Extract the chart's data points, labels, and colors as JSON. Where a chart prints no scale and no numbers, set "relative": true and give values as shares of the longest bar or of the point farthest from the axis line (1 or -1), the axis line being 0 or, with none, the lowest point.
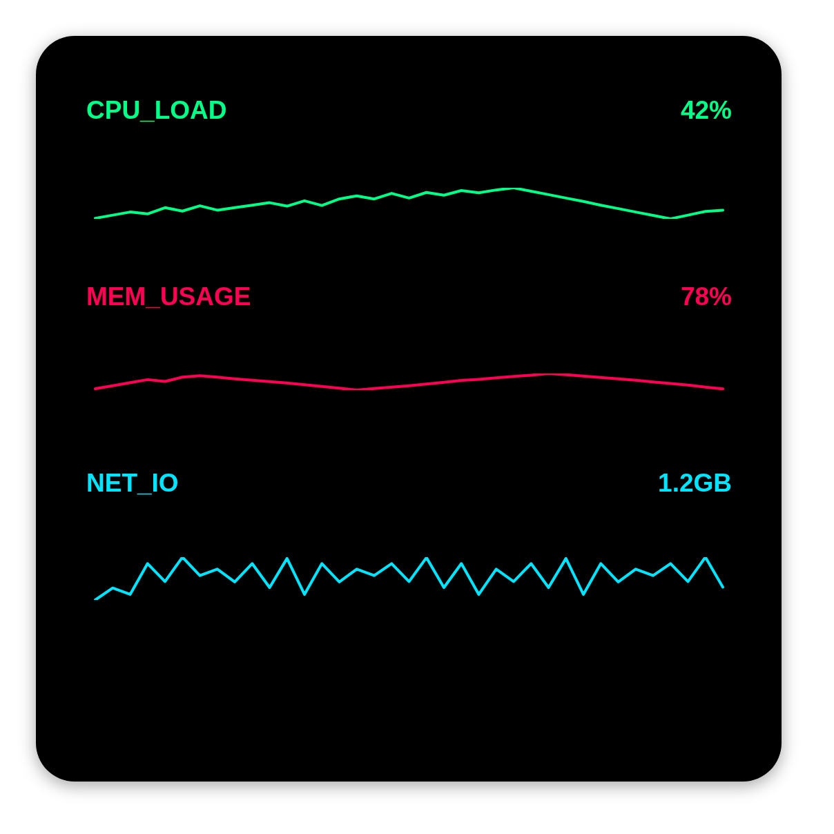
{
  "chart_data": [
    {
      "type": "line",
      "title": "CPU_LOAD",
      "annotations": [
        "42%"
      ],
      "relative": true,
      "categories": [
        null,
        null,
        null,
        null,
        null,
        null,
        null,
        null,
        null,
        null,
        null,
        null,
        null,
        null,
        null,
        null,
        null,
        null,
        null,
        null,
        null,
        null,
        null,
        null,
        null,
        null,
        null,
        null,
        null,
        null,
        null,
        null,
        null,
        null,
        null,
        null,
        null
      ],
      "series": [
        {
          "color": "#00ff88",
          "values": [
            0.02,
            0.12,
            0.22,
            0.16,
            0.36,
            0.25,
            0.42,
            0.28,
            0.36,
            0.44,
            0.52,
            0.41,
            0.58,
            0.43,
            0.64,
            0.74,
            0.64,
            0.82,
            0.67,
            0.85,
            0.76,
            0.91,
            0.84,
            0.93,
            1,
            0.89,
            0.78,
            0.67,
            0.56,
            0.44,
            0.33,
            0.22,
            0.11,
            0,
            0.12,
            0.24,
            0.28
          ]
        }
      ]
    },
    {
      "type": "line",
      "title": "MEM_USAGE",
      "annotations": [
        "78%"
      ],
      "relative": true,
      "categories": [
        null,
        null,
        null,
        null,
        null,
        null,
        null,
        null,
        null,
        null,
        null,
        null,
        null,
        null,
        null,
        null,
        null,
        null,
        null,
        null,
        null,
        null,
        null,
        null,
        null,
        null,
        null,
        null,
        null,
        null,
        null,
        null,
        null,
        null,
        null,
        null,
        null
      ],
      "series": [
        {
          "color": "#ff0055",
          "values": [
            0.08,
            0.26,
            0.45,
            0.63,
            0.52,
            0.78,
            0.86,
            0.78,
            0.68,
            0.59,
            0.51,
            0.43,
            0.32,
            0.22,
            0.11,
            0,
            0.09,
            0.18,
            0.26,
            0.36,
            0.47,
            0.58,
            0.65,
            0.74,
            0.82,
            0.9,
            1,
            0.93,
            0.84,
            0.76,
            0.68,
            0.59,
            0.49,
            0.4,
            0.3,
            0.18,
            0.07
          ]
        }
      ]
    },
    {
      "type": "line",
      "title": "NET_IO",
      "annotations": [
        "1.2GB"
      ],
      "relative": true,
      "categories": [
        null,
        null,
        null,
        null,
        null,
        null,
        null,
        null,
        null,
        null,
        null,
        null,
        null,
        null,
        null,
        null,
        null,
        null,
        null,
        null,
        null,
        null,
        null,
        null,
        null,
        null,
        null,
        null,
        null,
        null,
        null,
        null,
        null,
        null,
        null,
        null,
        null
      ],
      "series": [
        {
          "color": "#00e5ff",
          "values": [
            0,
            0.28,
            0.13,
            0.85,
            0.43,
            1,
            0.57,
            0.72,
            0.42,
            0.85,
            0.29,
            0.97,
            0.13,
            0.85,
            0.42,
            0.72,
            0.57,
            0.85,
            0.43,
            0.99,
            0.29,
            0.85,
            0.13,
            0.72,
            0.43,
            0.85,
            0.29,
            0.97,
            0.13,
            0.85,
            0.42,
            0.72,
            0.57,
            0.85,
            0.43,
            1,
            0.3
          ]
        }
      ]
    }
  ]
}
